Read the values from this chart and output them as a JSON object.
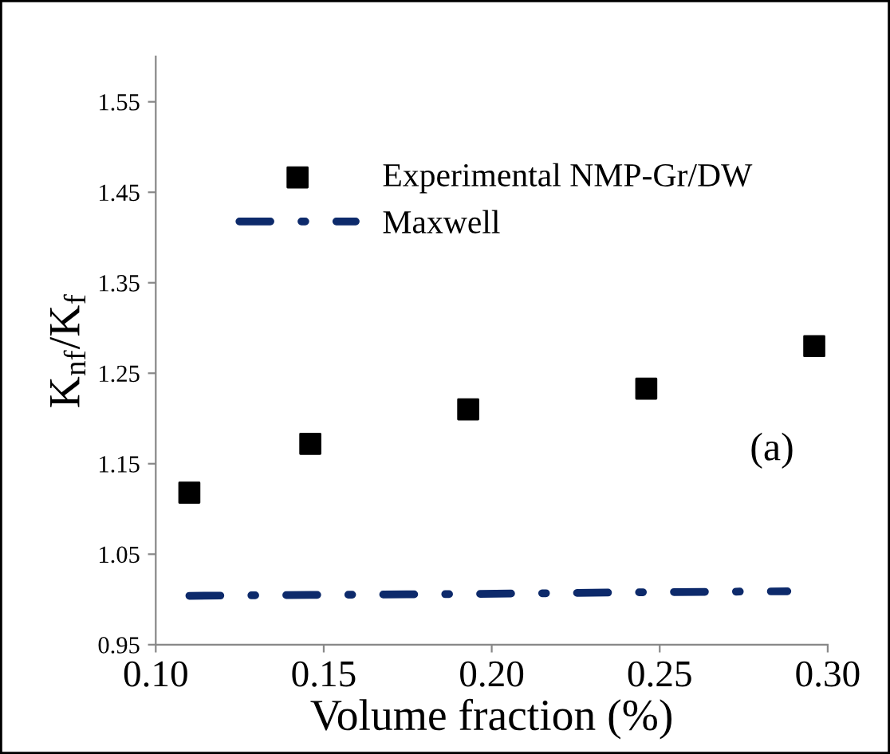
{
  "chart_data": {
    "type": "scatter",
    "xlabel": "Volume fraction (%)",
    "ylabel": "K$_{nf}$/K$_{f}$",
    "xlim": [
      0.1,
      0.3
    ],
    "xticks": [
      {
        "value": 0.1,
        "label": "0.10"
      },
      {
        "value": 0.15,
        "label": "0.15"
      },
      {
        "value": 0.2,
        "label": "0.20"
      },
      {
        "value": 0.25,
        "label": "0.25"
      },
      {
        "value": 0.3,
        "label": "0.30"
      }
    ],
    "ylim": [
      0.95,
      1.6
    ],
    "yticks": [
      0.95,
      1.05,
      1.15,
      1.25,
      1.35,
      1.45,
      1.55
    ],
    "grid": false,
    "legend": "top left",
    "series": [
      {
        "name": "Experimental NMP-Gr/DW",
        "marker": "square",
        "color": "#000000",
        "x": [
          0.11,
          0.146,
          0.193,
          0.246,
          0.296
        ],
        "values": [
          1.118,
          1.172,
          1.21,
          1.233,
          1.28
        ]
      },
      {
        "name": "Maxwell",
        "type": "line",
        "marker": "none",
        "line_style": "dashdot",
        "color": "#0d2a6b",
        "x": [
          0.11,
          0.146,
          0.193,
          0.246,
          0.288
        ],
        "values": [
          1.004,
          1.005,
          1.006,
          1.008,
          1.009
        ]
      }
    ],
    "annotations": [
      "(a)"
    ]
  }
}
